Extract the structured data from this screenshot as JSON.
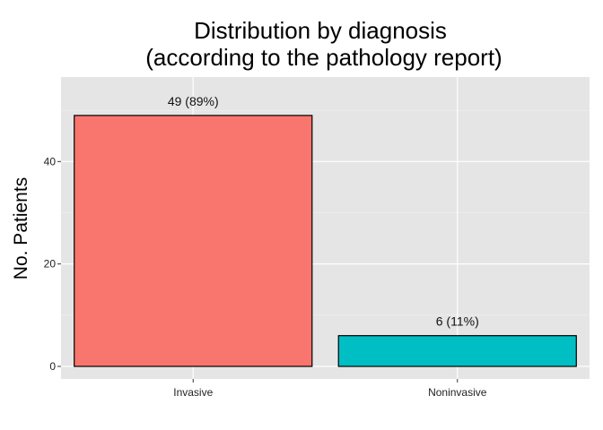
{
  "chart_data": {
    "type": "bar",
    "title_lines": [
      "Distribution by diagnosis",
      "(according to the pathology report)"
    ],
    "xlabel": "",
    "ylabel": "No. Patients",
    "categories": [
      "Invasive",
      "Noninvasive"
    ],
    "values": [
      49,
      6
    ],
    "bar_labels": [
      "49 (89%)",
      "6 (11%)"
    ],
    "colors": [
      "#F8766D",
      "#00BFC4"
    ],
    "yticks": [
      0,
      20,
      40
    ],
    "ylim": [
      -2.45,
      56.5
    ],
    "grid": true,
    "panel_background": "#E5E5E5",
    "legend": "none"
  }
}
